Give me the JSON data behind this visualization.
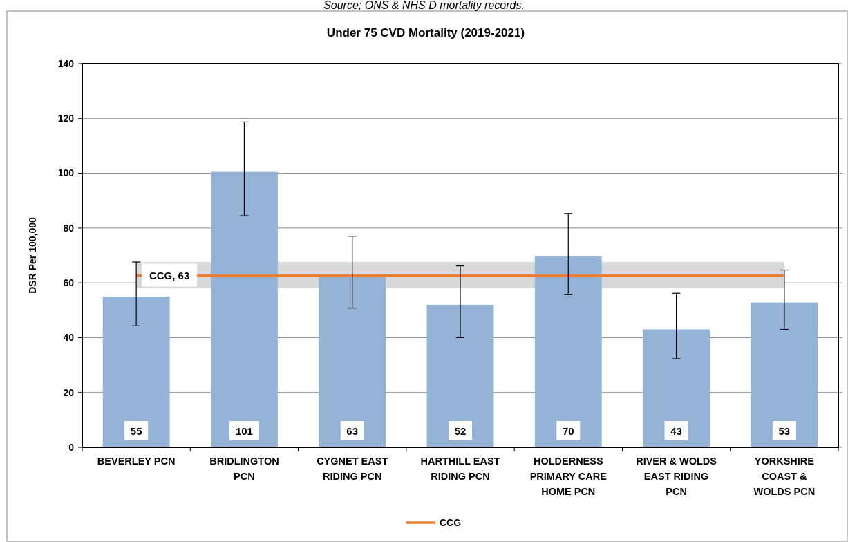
{
  "chart_data": {
    "type": "bar",
    "title": "Under 75 CVD Mortality (2019-2021)",
    "ylabel": "DSR Per 100,000",
    "annotations": [
      "Source; ONS & NHS D mortality records.",
      {
        "text": "CCG, 63",
        "x": "BEVERLEY PCN",
        "y": 62.7
      }
    ],
    "categories": [
      "BEVERLEY PCN",
      "BRIDLINGTON PCN",
      "CYGNET EAST RIDING PCN",
      "HARTHILL EAST RIDING PCN",
      "HOLDERNESS PRIMARY CARE HOME PCN",
      "RIVER & WOLDS EAST RIDING PCN",
      "YORKSHIRE COAST & WOLDS PCN"
    ],
    "series": [
      {
        "color": "#95b3d7",
        "values": [
          55,
          100.5,
          62.5,
          52,
          69.6,
          43,
          52.8
        ],
        "errors": [
          [
            44.3,
            67.6
          ],
          [
            84.5,
            118.7
          ],
          [
            50.8,
            77
          ],
          [
            40,
            66.2
          ],
          [
            55.8,
            85.3
          ],
          [
            32.3,
            56.2
          ],
          [
            43,
            64.7
          ]
        ],
        "value_labels": [
          "55",
          "101",
          "63",
          "52",
          "70",
          "43",
          "53"
        ]
      },
      {
        "type": "line",
        "name": "CCG",
        "color": "#ed7d31",
        "values": [
          62.7,
          62.7,
          62.7,
          62.7,
          62.7,
          62.7,
          62.7
        ],
        "lower": [
          58,
          58,
          58,
          58,
          58,
          58,
          58
        ],
        "upper": [
          67.6,
          67.6,
          67.6,
          67.6,
          67.6,
          67.6,
          67.6
        ]
      }
    ],
    "ylim": [
      0,
      140
    ],
    "yticks": [
      0,
      20,
      40,
      60,
      80,
      100,
      120,
      140
    ],
    "grid": "y",
    "legend": "bottom",
    "marker": "none",
    "line_style": "solid"
  }
}
